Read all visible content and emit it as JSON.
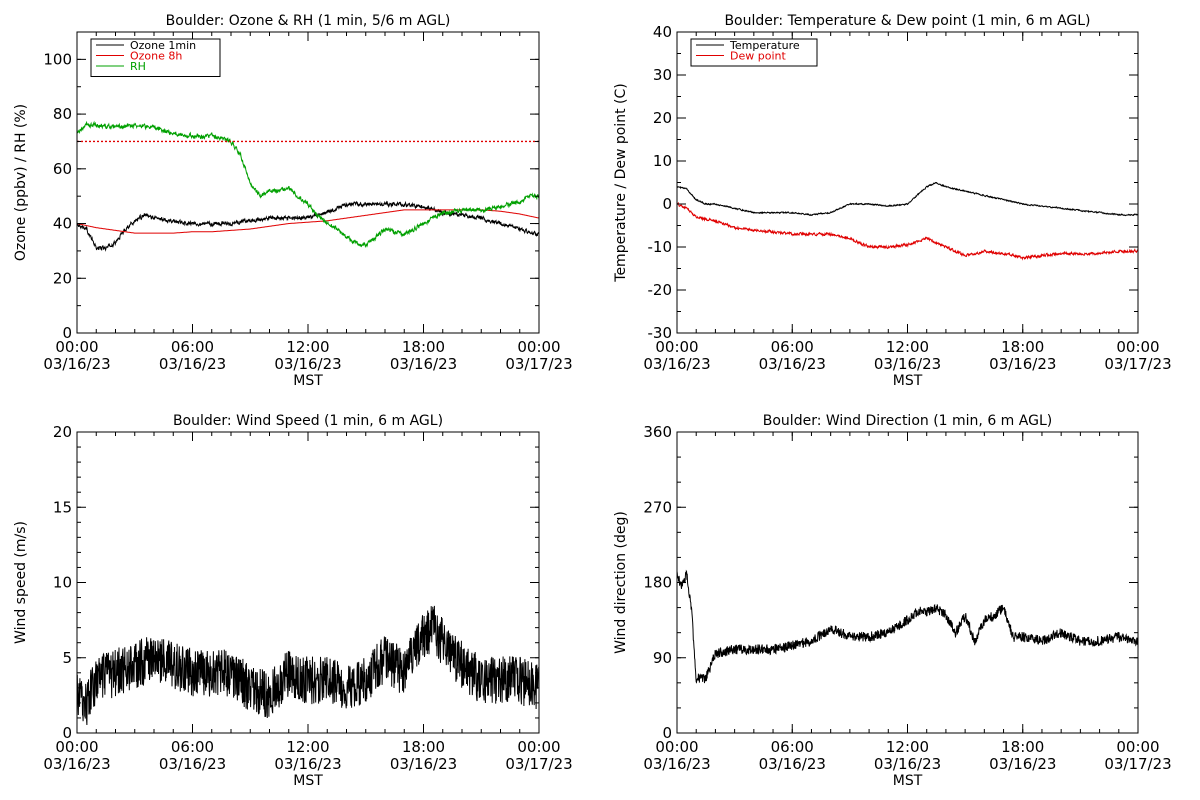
{
  "colors": {
    "ozone_1min": "#000000",
    "ozone_8h": "#e00000",
    "rh": "#00a000",
    "threshold": "#e00000",
    "temperature": "#000000",
    "dewpoint": "#e00000",
    "axes": "#000000"
  },
  "chart_data": [
    {
      "id": "ozone",
      "type": "line",
      "title": "Boulder: Ozone & RH (1 min, 5/6 m AGL)",
      "xlabel": "MST",
      "ylabel": "Ozone (ppbv) / RH (%)",
      "ylim": [
        0,
        110
      ],
      "yticks": [
        "0",
        "20",
        "40",
        "60",
        "80",
        "100"
      ],
      "ytick_values": [
        0,
        20,
        40,
        60,
        80,
        100
      ],
      "xlim": [
        0,
        24
      ],
      "xticks": [
        {
          "time": "00:00",
          "date": "03/16/23"
        },
        {
          "time": "06:00",
          "date": "03/16/23"
        },
        {
          "time": "12:00",
          "date": "03/16/23"
        },
        {
          "time": "18:00",
          "date": "03/16/23"
        },
        {
          "time": "00:00",
          "date": "03/17/23"
        }
      ],
      "legend_position": "top-left",
      "threshold": 70,
      "series": [
        {
          "name": "Ozone 1min",
          "color": "#000000",
          "noise": 1.2,
          "x": [
            0,
            0.5,
            1,
            1.5,
            2,
            2.5,
            3,
            3.5,
            4,
            5,
            6,
            7,
            8,
            9,
            10,
            11,
            12,
            13,
            14,
            15,
            16,
            17,
            18,
            19,
            20,
            21,
            22,
            23,
            24
          ],
          "y": [
            40,
            38,
            31,
            31,
            33,
            38,
            41,
            43,
            42,
            41,
            40,
            40,
            40,
            41,
            42,
            42,
            42,
            44,
            47,
            47,
            47,
            47,
            46,
            44,
            43,
            42,
            40,
            38,
            36
          ]
        },
        {
          "name": "Ozone 8h",
          "color": "#e00000",
          "noise": 0,
          "x": [
            0,
            1,
            2,
            3,
            4,
            5,
            6,
            7,
            8,
            9,
            10,
            11,
            12,
            13,
            14,
            15,
            16,
            17,
            18,
            19,
            20,
            21,
            22,
            23,
            24
          ],
          "y": [
            40,
            38.5,
            37.5,
            36.5,
            36.5,
            36.5,
            37,
            37,
            37.5,
            38,
            39,
            40,
            40.5,
            41,
            42,
            43,
            44,
            45,
            45,
            45,
            45,
            45,
            44.5,
            43.5,
            42
          ]
        },
        {
          "name": "RH",
          "color": "#00a000",
          "noise": 1.3,
          "x": [
            0,
            0.5,
            1,
            2,
            3,
            4,
            5,
            6,
            7,
            8,
            8.5,
            9,
            9.5,
            10,
            10.5,
            11,
            11.5,
            12,
            12.5,
            13,
            13.5,
            14,
            14.5,
            15,
            15.5,
            16,
            16.5,
            17,
            17.5,
            18,
            19,
            20,
            21,
            22,
            23,
            23.5,
            24
          ],
          "y": [
            73,
            76,
            76,
            75,
            76,
            75,
            73,
            72,
            72,
            70,
            65,
            55,
            50,
            52,
            52,
            53,
            50,
            47,
            43,
            40,
            38,
            35,
            33,
            32,
            35,
            38,
            37,
            36,
            38,
            40,
            44,
            45,
            45,
            46,
            48,
            50,
            50
          ]
        }
      ]
    },
    {
      "id": "temperature",
      "type": "line",
      "title": "Boulder: Temperature & Dew point (1 min, 6 m AGL)",
      "xlabel": "MST",
      "ylabel": "Temperature / Dew point (C)",
      "ylim": [
        -30,
        40
      ],
      "yticks": [
        "-30",
        "-20",
        "-10",
        "0",
        "10",
        "20",
        "30",
        "40"
      ],
      "ytick_values": [
        -30,
        -20,
        -10,
        0,
        10,
        20,
        30,
        40
      ],
      "xlim": [
        0,
        24
      ],
      "xticks": [
        {
          "time": "00:00",
          "date": "03/16/23"
        },
        {
          "time": "06:00",
          "date": "03/16/23"
        },
        {
          "time": "12:00",
          "date": "03/16/23"
        },
        {
          "time": "18:00",
          "date": "03/16/23"
        },
        {
          "time": "00:00",
          "date": "03/17/23"
        }
      ],
      "legend_position": "top-left",
      "series": [
        {
          "name": "Temperature",
          "color": "#000000",
          "noise": 0.25,
          "x": [
            0,
            0.5,
            1,
            1.5,
            2,
            3,
            4,
            5,
            6,
            7,
            8,
            9,
            10,
            11,
            12,
            13,
            13.5,
            14,
            15,
            16,
            17,
            18,
            19,
            20,
            21,
            22,
            23,
            24
          ],
          "y": [
            4,
            3.5,
            1,
            0,
            0,
            -1,
            -2,
            -2,
            -2,
            -2.5,
            -2,
            0,
            0,
            -0.5,
            0,
            4,
            5,
            4,
            3,
            2,
            1,
            0,
            -0.5,
            -1,
            -1.5,
            -2,
            -2.5,
            -2.5
          ]
        },
        {
          "name": "Dew point",
          "color": "#e00000",
          "noise": 0.5,
          "x": [
            0,
            0.5,
            1,
            2,
            3,
            4,
            5,
            6,
            7,
            8,
            9,
            10,
            11,
            12,
            13,
            14,
            15,
            16,
            17,
            18,
            19,
            20,
            21,
            22,
            23,
            24
          ],
          "y": [
            0,
            -1,
            -3,
            -4,
            -5.5,
            -6,
            -6.5,
            -7,
            -7,
            -7,
            -8,
            -10,
            -10,
            -9.5,
            -8,
            -10,
            -12,
            -11,
            -11.5,
            -12.5,
            -12,
            -11.5,
            -11.5,
            -11.5,
            -11,
            -11
          ]
        }
      ]
    },
    {
      "id": "wind_speed",
      "type": "line",
      "title": "Boulder: Wind Speed (1 min, 6 m AGL)",
      "xlabel": "MST",
      "ylabel": "Wind speed (m/s)",
      "ylim": [
        0,
        20
      ],
      "yticks": [
        "0",
        "5",
        "10",
        "15",
        "20"
      ],
      "ytick_values": [
        0,
        5,
        10,
        15,
        20
      ],
      "xlim": [
        0,
        24
      ],
      "xticks": [
        {
          "time": "00:00",
          "date": "03/16/23"
        },
        {
          "time": "06:00",
          "date": "03/16/23"
        },
        {
          "time": "12:00",
          "date": "03/16/23"
        },
        {
          "time": "18:00",
          "date": "03/16/23"
        },
        {
          "time": "00:00",
          "date": "03/17/23"
        }
      ],
      "series": [
        {
          "name": "",
          "color": "#000000",
          "noise": 1.6,
          "x": [
            0,
            0.5,
            1,
            2,
            3,
            4,
            5,
            6,
            7,
            8,
            9,
            10,
            11,
            12,
            13,
            14,
            15,
            16,
            17,
            18,
            18.5,
            19,
            20,
            21,
            22,
            23,
            24
          ],
          "y": [
            2.5,
            2,
            3.5,
            4,
            4.5,
            5,
            4.5,
            4,
            4,
            4,
            3,
            2.5,
            4,
            3.5,
            3.5,
            3,
            3.5,
            5,
            4,
            6.5,
            7,
            6,
            4.5,
            3.5,
            3.5,
            3.5,
            3
          ]
        }
      ]
    },
    {
      "id": "wind_direction",
      "type": "line",
      "title": "Boulder: Wind Direction (1 min, 6 m AGL)",
      "xlabel": "MST",
      "ylabel": "Wind direction (deg)",
      "ylim": [
        0,
        360
      ],
      "yticks": [
        "0",
        "90",
        "180",
        "270",
        "360"
      ],
      "ytick_values": [
        0,
        90,
        180,
        270,
        360
      ],
      "xlim": [
        0,
        24
      ],
      "xticks": [
        {
          "time": "00:00",
          "date": "03/16/23"
        },
        {
          "time": "06:00",
          "date": "03/16/23"
        },
        {
          "time": "12:00",
          "date": "03/16/23"
        },
        {
          "time": "18:00",
          "date": "03/16/23"
        },
        {
          "time": "00:00",
          "date": "03/17/23"
        }
      ],
      "series": [
        {
          "name": "",
          "color": "#000000",
          "noise": 6,
          "x": [
            0,
            0.25,
            0.5,
            0.75,
            1,
            1.5,
            2,
            3,
            4,
            5,
            6,
            7,
            8,
            9,
            10,
            11,
            12,
            12.5,
            13,
            13.5,
            14,
            14.5,
            15,
            15.5,
            16,
            16.5,
            17,
            17.5,
            18,
            19,
            20,
            21,
            22,
            23,
            24
          ],
          "y": [
            190,
            175,
            190,
            150,
            65,
            65,
            95,
            100,
            100,
            100,
            105,
            110,
            125,
            115,
            115,
            120,
            135,
            145,
            145,
            150,
            140,
            120,
            140,
            110,
            135,
            140,
            150,
            115,
            115,
            110,
            120,
            110,
            110,
            115,
            110
          ]
        }
      ]
    }
  ]
}
